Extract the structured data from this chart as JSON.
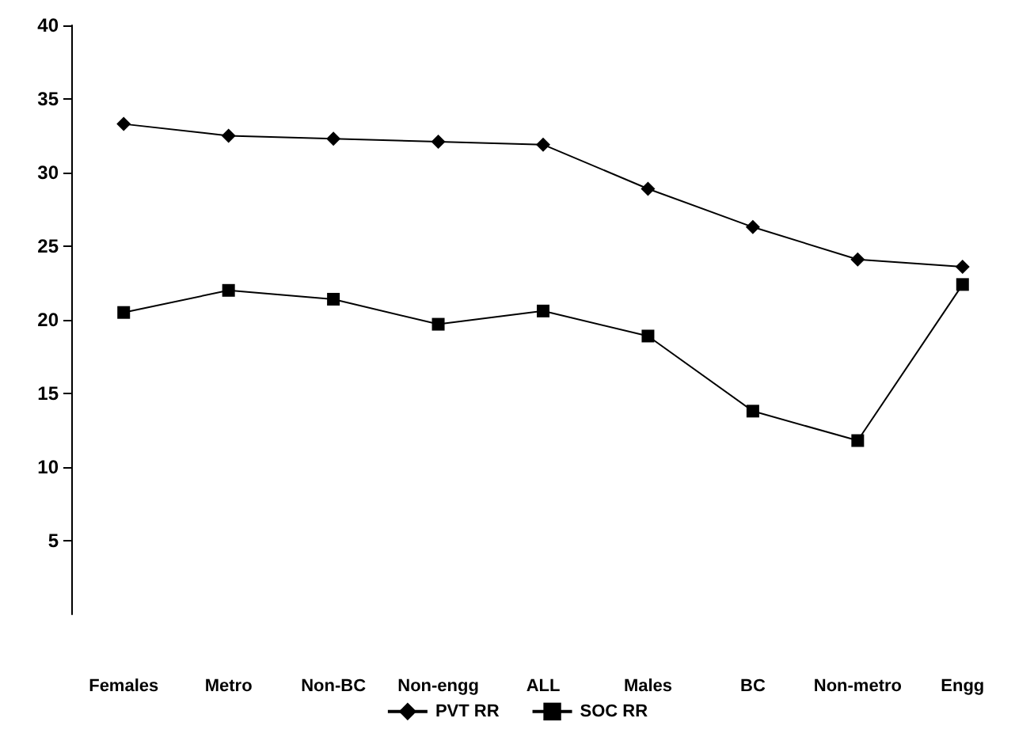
{
  "chart_data": {
    "type": "line",
    "categories": [
      "Females",
      "Metro",
      "Non-BC",
      "Non-engg",
      "ALL",
      "Males",
      "BC",
      "Non-metro",
      "Engg"
    ],
    "series": [
      {
        "name": "PVT RR",
        "color": "#000000",
        "marker": "diamond",
        "values": [
          33.3,
          32.5,
          32.3,
          32.1,
          31.9,
          28.9,
          26.3,
          24.1,
          23.6
        ]
      },
      {
        "name": "SOC RR",
        "color": "#000000",
        "marker": "square",
        "values": [
          20.5,
          22.0,
          21.4,
          19.7,
          20.6,
          18.9,
          13.8,
          11.8,
          22.4
        ]
      }
    ],
    "ylim": [
      0,
      40
    ],
    "yticks": [
      5,
      10,
      15,
      20,
      25,
      30,
      35,
      40
    ],
    "grid": false,
    "legend": "bottom",
    "line_style": "solid"
  }
}
